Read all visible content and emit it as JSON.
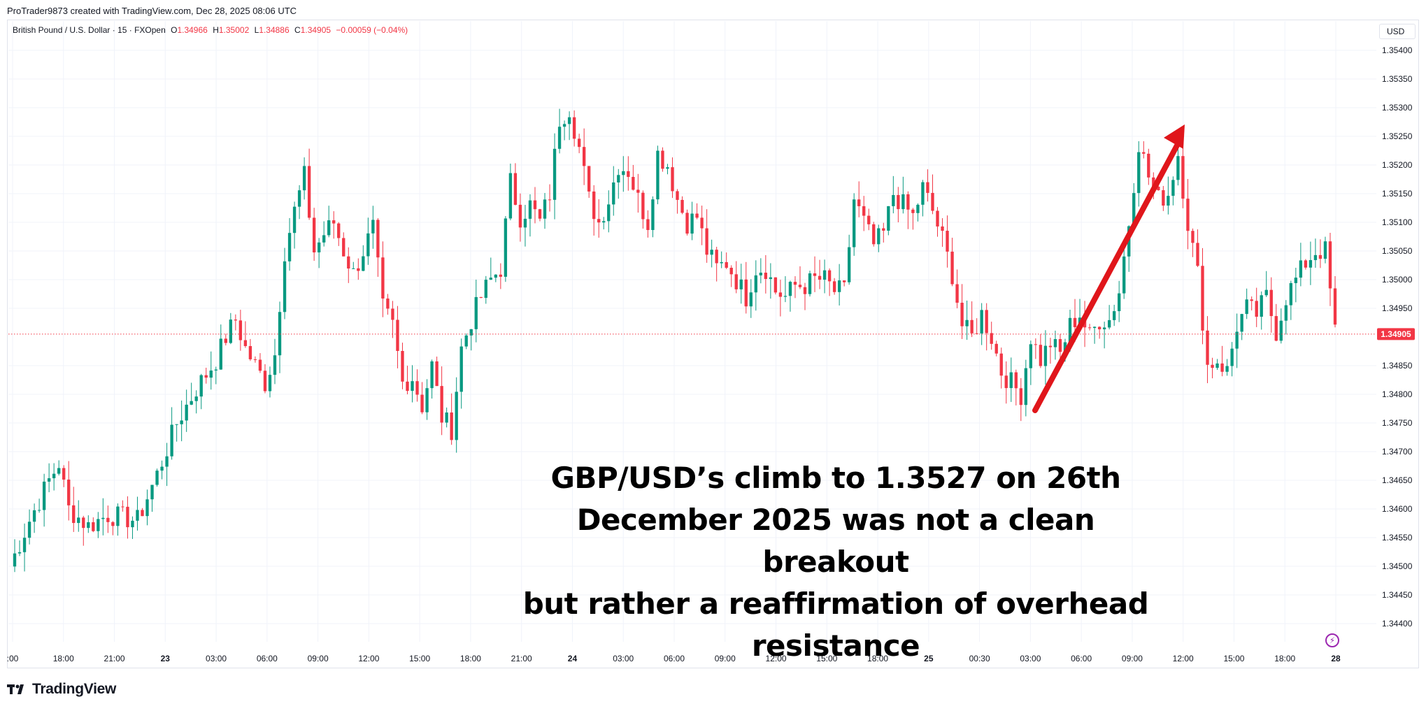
{
  "header": {
    "text": "ProTrader9873 created with TradingView.com, Dec 28, 2025 08:06 UTC"
  },
  "symbol": {
    "name": "British Pound / U.S. Dollar · 15 · FXOpen",
    "o_label": "O",
    "o_value": "1.34966",
    "h_label": "H",
    "h_value": "1.35002",
    "l_label": "L",
    "l_value": "1.34886",
    "c_label": "C",
    "c_value": "1.34905",
    "change": "−0.00059 (−0.04%)"
  },
  "currency": "USD",
  "annotation": {
    "lines": [
      "GBP/USD’s climb to 1.3527 on 26th",
      "December 2025 was not a clean breakout",
      "but rather a reaffirmation of overhead",
      "resistance"
    ]
  },
  "footer": {
    "brand": "TradingView"
  },
  "colors": {
    "up": "#089981",
    "down": "#f23645",
    "grid": "#f0f3fa",
    "arrow": "#e0161b",
    "price_line": "#f23645"
  },
  "icons": {
    "lightning": "lightning-icon",
    "logo": "tradingview-logo-icon"
  },
  "chart_data": {
    "type": "candlestick",
    "title": "",
    "ylim": [
      1.3436,
      1.3545
    ],
    "y_ticks": [
      "1.35400",
      "1.35350",
      "1.35300",
      "1.35250",
      "1.35200",
      "1.35150",
      "1.35100",
      "1.35050",
      "1.35000",
      "1.34950",
      "1.34850",
      "1.34800",
      "1.34750",
      "1.34700",
      "1.34650",
      "1.34600",
      "1.34550",
      "1.34500",
      "1.34450",
      "1.34400"
    ],
    "x_ticks": [
      ":00",
      "18:00",
      "21:00",
      "23",
      "03:00",
      "06:00",
      "09:00",
      "12:00",
      "15:00",
      "18:00",
      "21:00",
      "24",
      "03:00",
      "06:00",
      "09:00",
      "12:00",
      "15:00",
      "18:00",
      "25",
      "00:30",
      "03:00",
      "06:00",
      "09:00",
      "12:00",
      "15:00",
      "18:00",
      "28"
    ],
    "bold_ticks": [
      "23",
      "24",
      "25",
      "28"
    ],
    "current_price": "1.34905",
    "anchors": [
      [
        0,
        1.345
      ],
      [
        4,
        1.3458
      ],
      [
        8,
        1.3465
      ],
      [
        10,
        1.3468
      ],
      [
        12,
        1.346
      ],
      [
        16,
        1.3457
      ],
      [
        20,
        1.3459
      ],
      [
        26,
        1.3458
      ],
      [
        30,
        1.3466
      ],
      [
        34,
        1.3475
      ],
      [
        38,
        1.3481
      ],
      [
        42,
        1.3486
      ],
      [
        44,
        1.349
      ],
      [
        46,
        1.3493
      ],
      [
        48,
        1.3488
      ],
      [
        52,
        1.3482
      ],
      [
        54,
        1.3487
      ],
      [
        56,
        1.3505
      ],
      [
        58,
        1.3512
      ],
      [
        60,
        1.3518
      ],
      [
        62,
        1.3505
      ],
      [
        64,
        1.3508
      ],
      [
        66,
        1.351
      ],
      [
        68,
        1.3505
      ],
      [
        70,
        1.3501
      ],
      [
        74,
        1.3509
      ],
      [
        76,
        1.3495
      ],
      [
        78,
        1.3492
      ],
      [
        80,
        1.3482
      ],
      [
        82,
        1.3483
      ],
      [
        84,
        1.3478
      ],
      [
        86,
        1.3485
      ],
      [
        88,
        1.3476
      ],
      [
        90,
        1.3474
      ],
      [
        92,
        1.3488
      ],
      [
        94,
        1.3493
      ],
      [
        96,
        1.3497
      ],
      [
        98,
        1.35
      ],
      [
        100,
        1.3502
      ],
      [
        102,
        1.3517
      ],
      [
        104,
        1.3511
      ],
      [
        106,
        1.3513
      ],
      [
        108,
        1.351
      ],
      [
        110,
        1.3515
      ],
      [
        112,
        1.3528
      ],
      [
        114,
        1.353
      ],
      [
        116,
        1.3523
      ],
      [
        118,
        1.3514
      ],
      [
        120,
        1.351
      ],
      [
        122,
        1.3514
      ],
      [
        124,
        1.352
      ],
      [
        126,
        1.3519
      ],
      [
        128,
        1.3514
      ],
      [
        130,
        1.351
      ],
      [
        132,
        1.3522
      ],
      [
        134,
        1.352
      ],
      [
        136,
        1.3514
      ],
      [
        138,
        1.351
      ],
      [
        140,
        1.3511
      ],
      [
        142,
        1.3505
      ],
      [
        144,
        1.3502
      ],
      [
        146,
        1.3503
      ],
      [
        148,
        1.35
      ],
      [
        150,
        1.3497
      ],
      [
        152,
        1.3502
      ],
      [
        154,
        1.3502
      ],
      [
        156,
        1.3498
      ],
      [
        158,
        1.3497
      ],
      [
        160,
        1.3499
      ],
      [
        162,
        1.3499
      ],
      [
        164,
        1.35
      ],
      [
        166,
        1.35
      ],
      [
        168,
        1.3498
      ],
      [
        170,
        1.3498
      ],
      [
        172,
        1.3514
      ],
      [
        174,
        1.351
      ],
      [
        176,
        1.3506
      ],
      [
        178,
        1.3508
      ],
      [
        180,
        1.3515
      ],
      [
        182,
        1.3513
      ],
      [
        184,
        1.3511
      ],
      [
        186,
        1.3516
      ],
      [
        188,
        1.3512
      ],
      [
        190,
        1.3507
      ],
      [
        192,
        1.3501
      ],
      [
        194,
        1.3492
      ],
      [
        196,
        1.349
      ],
      [
        198,
        1.3494
      ],
      [
        200,
        1.349
      ],
      [
        202,
        1.3484
      ],
      [
        204,
        1.3482
      ],
      [
        206,
        1.348
      ],
      [
        208,
        1.349
      ],
      [
        210,
        1.3486
      ],
      [
        212,
        1.3489
      ],
      [
        214,
        1.3487
      ],
      [
        216,
        1.3492
      ],
      [
        218,
        1.3494
      ],
      [
        220,
        1.349
      ],
      [
        222,
        1.3493
      ],
      [
        224,
        1.3493
      ],
      [
        226,
        1.3498
      ],
      [
        228,
        1.351
      ],
      [
        230,
        1.3524
      ],
      [
        232,
        1.3518
      ],
      [
        234,
        1.3514
      ],
      [
        236,
        1.3515
      ],
      [
        238,
        1.3522
      ],
      [
        240,
        1.351
      ],
      [
        242,
        1.3501
      ],
      [
        244,
        1.3485
      ],
      [
        246,
        1.3486
      ],
      [
        248,
        1.3484
      ],
      [
        250,
        1.3492
      ],
      [
        252,
        1.3495
      ],
      [
        254,
        1.3494
      ],
      [
        256,
        1.3497
      ],
      [
        258,
        1.3491
      ],
      [
        260,
        1.3497
      ],
      [
        262,
        1.35
      ],
      [
        264,
        1.3503
      ],
      [
        266,
        1.3505
      ],
      [
        268,
        1.3505
      ],
      [
        270,
        1.3491
      ]
    ]
  }
}
